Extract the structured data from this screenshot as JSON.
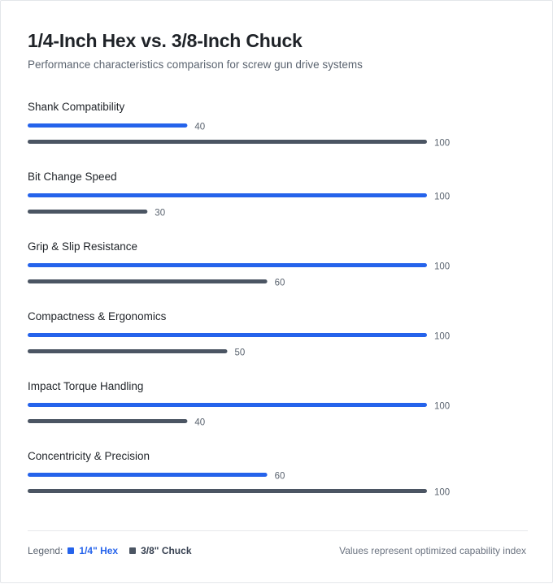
{
  "title": "1/4-Inch Hex vs. 3/8-Inch Chuck",
  "subtitle": "Performance characteristics comparison for screw gun drive systems",
  "legend": {
    "label": "Legend:",
    "items": [
      {
        "label": "1/4\" Hex",
        "color": "#2563eb"
      },
      {
        "label": "3/8\" Chuck",
        "color": "#4b5563"
      }
    ]
  },
  "footnote": "Values represent optimized capability index",
  "chart_data": {
    "type": "bar",
    "orientation": "horizontal",
    "title": "1/4-Inch Hex vs. 3/8-Inch Chuck",
    "subtitle": "Performance characteristics comparison for screw gun drive systems",
    "categories": [
      "Shank Compatibility",
      "Bit Change Speed",
      "Grip & Slip Resistance",
      "Compactness & Ergonomics",
      "Impact Torque Handling",
      "Concentricity & Precision"
    ],
    "series": [
      {
        "name": "1/4\" Hex",
        "color": "#2563eb",
        "values": [
          40,
          100,
          100,
          100,
          100,
          60
        ]
      },
      {
        "name": "3/8\" Chuck",
        "color": "#4b5563",
        "values": [
          100,
          30,
          60,
          50,
          40,
          100
        ]
      }
    ],
    "xlim": [
      0,
      100
    ],
    "grid": false,
    "legend_position": "bottom-left"
  }
}
